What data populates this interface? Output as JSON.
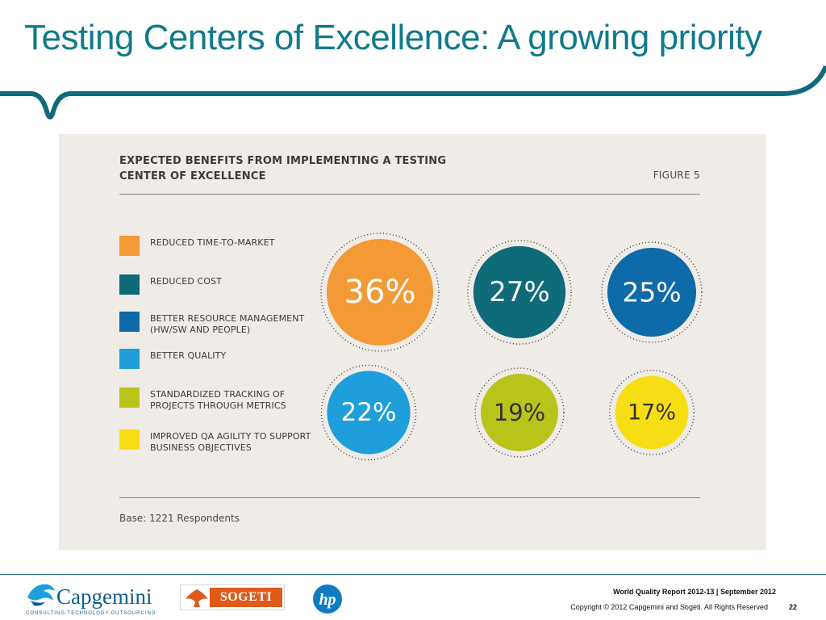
{
  "slide": {
    "title": "Testing Centers of Excellence: A growing priority",
    "accent_color": "#0f7a8c"
  },
  "figure": {
    "title": "EXPECTED BENEFITS FROM IMPLEMENTING A TESTING CENTER OF EXCELLENCE",
    "label": "FIGURE 5",
    "base": "Base: 1221 Respondents",
    "background": "#efebe7"
  },
  "chart_data": {
    "type": "bubble",
    "title": "EXPECTED BENEFITS FROM IMPLEMENTING A TESTING CENTER OF EXCELLENCE",
    "categories": [
      "REDUCED TIME-TO-MARKET",
      "REDUCED COST",
      "BETTER RESOURCE MANAGEMENT (HW/SW AND PEOPLE)",
      "BETTER QUALITY",
      "STANDARDIZED TRACKING OF PROJECTS THROUGH METRICS",
      "IMPROVED QA AGILITY TO SUPPORT BUSINESS OBJECTIVES"
    ],
    "values": [
      36,
      27,
      25,
      22,
      19,
      17
    ],
    "value_labels": [
      "36%",
      "27%",
      "25%",
      "22%",
      "19%",
      "17%"
    ],
    "colors": [
      "#f39a36",
      "#0f6a7a",
      "#0e6aa8",
      "#1e9fdc",
      "#b9c41a",
      "#f7dd13"
    ],
    "label_colors": [
      "#ffffff",
      "#ffffff",
      "#ffffff",
      "#ffffff",
      "#333333",
      "#333333"
    ],
    "unit": "%"
  },
  "footer": {
    "capgemini": "Capgemini",
    "capgemini_tagline": "CONSULTING.TECHNOLOGY.OUTSOURCING",
    "sogeti": "SOGETI",
    "report": "World Quality Report 2012-13 | September 2012",
    "copyright": "Copyright © 2012 Capgemini and Sogeti. All Rights Reserved",
    "page": "22"
  }
}
